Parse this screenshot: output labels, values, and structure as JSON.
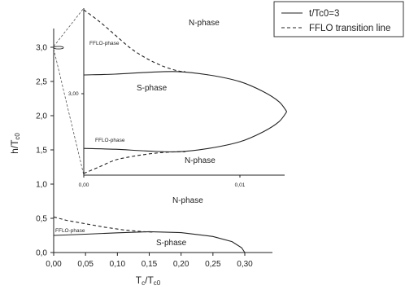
{
  "chart_data": [
    {
      "type": "line",
      "xlabel": "Tc/Tc0",
      "ylabel": "h/Tc0",
      "xlim": [
        0,
        0.35
      ],
      "ylim": [
        0,
        3.2
      ],
      "xticks": [
        "0,00",
        "0,05",
        "0,10",
        "0,15",
        "0,20",
        "0,25",
        "0,30"
      ],
      "yticks": [
        "0,0",
        "0,5",
        "1,0",
        "1,5",
        "2,0",
        "2,5",
        "3,0"
      ],
      "legend": {
        "position": "top-right",
        "entries": [
          {
            "label": "t/Tc0=3",
            "style": "solid"
          },
          {
            "label": "FFLO transition line",
            "style": "dashed"
          }
        ]
      },
      "series": [
        {
          "name": "t/Tc0=3",
          "style": "solid",
          "x": [
            0,
            0.05,
            0.1,
            0.15,
            0.2,
            0.25,
            0.28,
            0.295,
            0.3
          ],
          "y": [
            0.25,
            0.268,
            0.288,
            0.305,
            0.29,
            0.235,
            0.16,
            0.07,
            0
          ]
        },
        {
          "name": "FFLO transition line",
          "style": "dashed",
          "x": [
            0,
            0.02,
            0.05,
            0.08,
            0.11,
            0.14,
            0.155
          ],
          "y": [
            0.52,
            0.47,
            0.42,
            0.37,
            0.33,
            0.305,
            0.3
          ]
        }
      ],
      "annotations": [
        "N-phase",
        "FFLO-phase",
        "S-phase"
      ]
    },
    {
      "type": "line",
      "panel": "inset",
      "xlim": [
        0,
        0.0138
      ],
      "xticks": [
        "0,00",
        "0,01"
      ],
      "yticks": [
        "3,00"
      ],
      "series": [
        {
          "name": "t/Tc0=3 (upper branch)",
          "style": "solid",
          "x": [
            0,
            0.002,
            0.004,
            0.006,
            0.008,
            0.01,
            0.0115,
            0.0125,
            0.013
          ],
          "y": [
            0.6,
            0.605,
            0.615,
            0.62,
            0.6,
            0.56,
            0.5,
            0.44,
            0.38
          ]
        },
        {
          "name": "t/Tc0=3 (lower branch)",
          "style": "solid",
          "x": [
            0,
            0.002,
            0.004,
            0.006,
            0.008,
            0.01,
            0.0115,
            0.0125,
            0.013
          ],
          "y": [
            0.16,
            0.155,
            0.145,
            0.14,
            0.16,
            0.2,
            0.26,
            0.32,
            0.38
          ]
        },
        {
          "name": "FFLO transition line (upper)",
          "style": "dashed",
          "x": [
            0,
            0.001,
            0.002,
            0.003,
            0.004,
            0.005,
            0.006,
            0.0065
          ],
          "y": [
            0.99,
            0.92,
            0.84,
            0.76,
            0.7,
            0.655,
            0.625,
            0.62
          ]
        },
        {
          "name": "FFLO transition line (lower)",
          "style": "dashed",
          "x": [
            0,
            0.001,
            0.002,
            0.003,
            0.004,
            0.005,
            0.006,
            0.0065
          ],
          "y": [
            0.01,
            0.05,
            0.09,
            0.11,
            0.125,
            0.135,
            0.14,
            0.14
          ]
        }
      ],
      "annotations": [
        "N-phase",
        "FFLO-phase",
        "S-phase",
        "FFLO-phase",
        "N-phase"
      ]
    }
  ]
}
